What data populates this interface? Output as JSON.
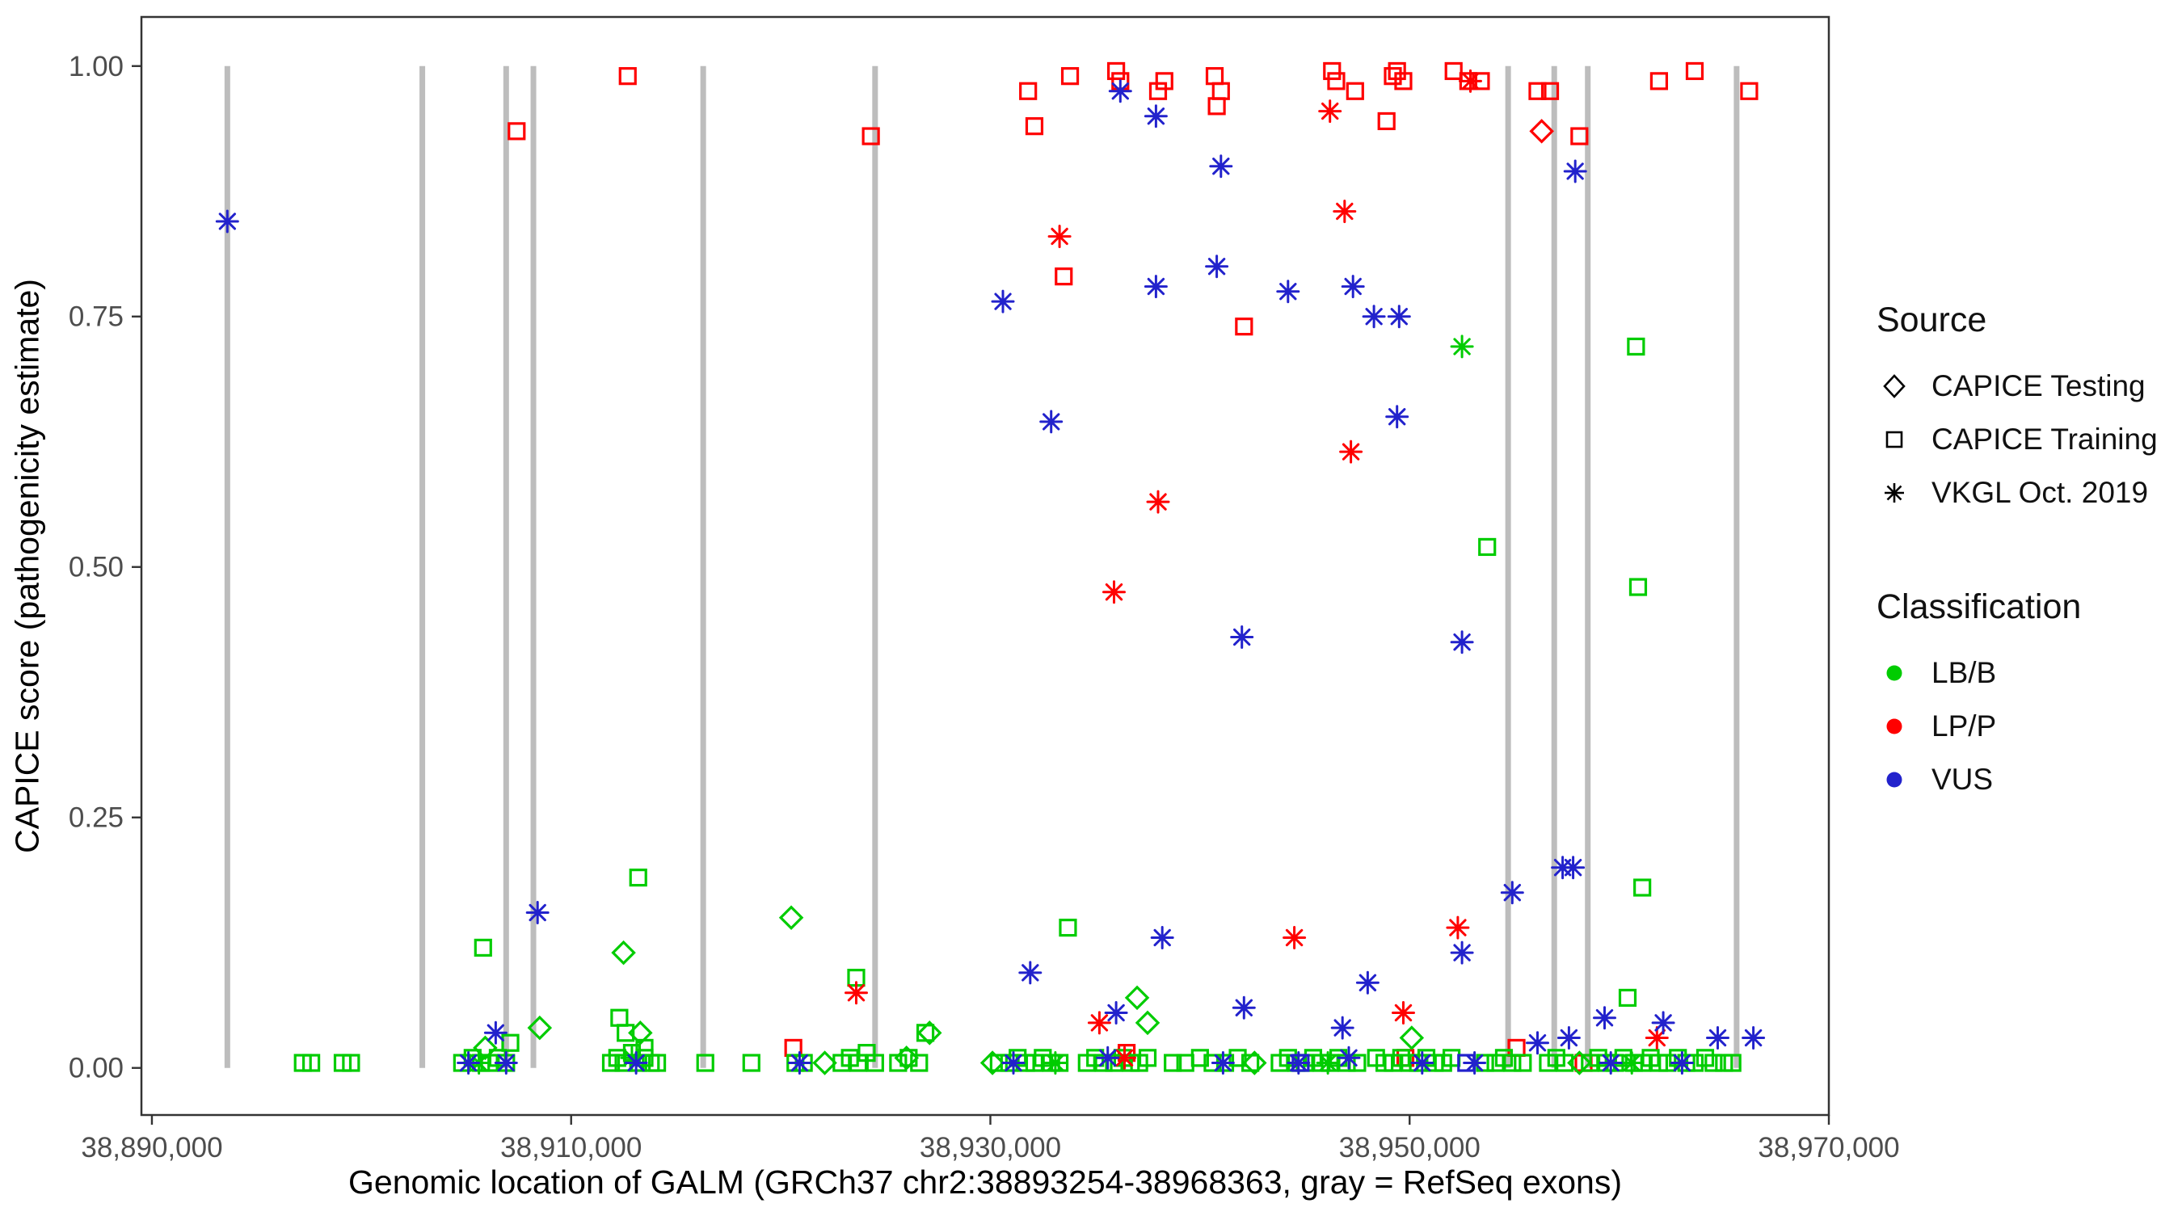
{
  "figure": {
    "y_axis_title": "CAPICE score (pathogenicity estimate)",
    "x_axis_title": "Genomic location of GALM (GRCh37 chr2:38893254-38968363, gray = RefSeq exons)"
  },
  "legend": {
    "source": {
      "title": "Source",
      "items": [
        {
          "label": "CAPICE Testing",
          "shape": "diamond"
        },
        {
          "label": "CAPICE Training",
          "shape": "square"
        },
        {
          "label": "VKGL Oct. 2019",
          "shape": "asterisk"
        }
      ]
    },
    "classification": {
      "title": "Classification",
      "items": [
        {
          "label": "LB/B",
          "color": "#00CC00"
        },
        {
          "label": "LP/P",
          "color": "#FF0000"
        },
        {
          "label": "VUS",
          "color": "#2222CC"
        }
      ]
    }
  },
  "chart_data": {
    "type": "scatter",
    "title": "",
    "xlabel": "Genomic location of GALM (GRCh37 chr2:38893254-38968363, gray = RefSeq exons)",
    "ylabel": "CAPICE score (pathogenicity estimate)",
    "xlim": [
      38889500,
      38970000
    ],
    "ylim": [
      -0.047,
      1.049
    ],
    "grid": false,
    "legend_position": "right",
    "x_ticks": [
      {
        "value": 38890000,
        "label": "38,890,000"
      },
      {
        "value": 38910000,
        "label": "38,910,000"
      },
      {
        "value": 38930000,
        "label": "38,930,000"
      },
      {
        "value": 38950000,
        "label": "38,950,000"
      },
      {
        "value": 38970000,
        "label": "38,970,000"
      }
    ],
    "y_ticks": [
      {
        "value": 0.0,
        "label": "0.00"
      },
      {
        "value": 0.25,
        "label": "0.25"
      },
      {
        "value": 0.5,
        "label": "0.50"
      },
      {
        "value": 0.75,
        "label": "0.75"
      },
      {
        "value": 1.0,
        "label": "1.00"
      }
    ],
    "colors": {
      "LB/B": "#00CC00",
      "LP/P": "#FF0000",
      "VUS": "#2222CC"
    },
    "shapes": {
      "CAPICE Testing": "diamond",
      "CAPICE Training": "square",
      "VKGL Oct. 2019": "asterisk"
    },
    "exons": {
      "note": "gray vertical lines = RefSeq exons",
      "color": "#BDBDBD",
      "width": 7,
      "y_span": [
        0.0,
        1.0
      ],
      "positions": [
        38893600,
        38902900,
        38906900,
        38908200,
        38916300,
        38924500,
        38954700,
        38956900,
        38958500,
        38965600
      ]
    },
    "series": [
      {
        "name": "CAPICE Training / LP/P",
        "source": "CAPICE Training",
        "classification": "LP/P",
        "shape": "square",
        "points": [
          [
            38907400,
            0.935
          ],
          [
            38912700,
            0.99
          ],
          [
            38924300,
            0.93
          ],
          [
            38931800,
            0.975
          ],
          [
            38932100,
            0.94
          ],
          [
            38933500,
            0.79
          ],
          [
            38933800,
            0.99
          ],
          [
            38936000,
            0.995
          ],
          [
            38936200,
            0.985
          ],
          [
            38938000,
            0.975
          ],
          [
            38938300,
            0.985
          ],
          [
            38940700,
            0.99
          ],
          [
            38940800,
            0.96
          ],
          [
            38941000,
            0.975
          ],
          [
            38942100,
            0.74
          ],
          [
            38946300,
            0.995
          ],
          [
            38946500,
            0.985
          ],
          [
            38947400,
            0.975
          ],
          [
            38948900,
            0.945
          ],
          [
            38949200,
            0.99
          ],
          [
            38949400,
            0.995
          ],
          [
            38949700,
            0.985
          ],
          [
            38952100,
            0.995
          ],
          [
            38952800,
            0.985
          ],
          [
            38953400,
            0.985
          ],
          [
            38956100,
            0.975
          ],
          [
            38956700,
            0.975
          ],
          [
            38958100,
            0.93
          ],
          [
            38961900,
            0.985
          ],
          [
            38963600,
            0.995
          ],
          [
            38966200,
            0.975
          ],
          [
            38920600,
            0.02
          ],
          [
            38936500,
            0.015
          ],
          [
            38949800,
            0.01
          ],
          [
            38955100,
            0.02
          ],
          [
            38958300,
            0.005
          ]
        ]
      },
      {
        "name": "CAPICE Training / LB/B",
        "source": "CAPICE Training",
        "classification": "LB/B",
        "shape": "square",
        "points": [
          [
            38913200,
            0.19
          ],
          [
            38905800,
            0.12
          ],
          [
            38907100,
            0.025
          ],
          [
            38912300,
            0.05
          ],
          [
            38912600,
            0.035
          ],
          [
            38913500,
            0.02
          ],
          [
            38923600,
            0.09
          ],
          [
            38926900,
            0.035
          ],
          [
            38933700,
            0.14
          ],
          [
            38953700,
            0.52
          ],
          [
            38960800,
            0.72
          ],
          [
            38960900,
            0.48
          ],
          [
            38961100,
            0.18
          ],
          [
            38960400,
            0.07
          ],
          [
            38897200,
            0.005
          ],
          [
            38897600,
            0.005
          ],
          [
            38899100,
            0.005
          ],
          [
            38899500,
            0.005
          ],
          [
            38904800,
            0.005
          ],
          [
            38905300,
            0.01
          ],
          [
            38905700,
            0.005
          ],
          [
            38906100,
            0.005
          ],
          [
            38906500,
            0.01
          ],
          [
            38906900,
            0.005
          ],
          [
            38911900,
            0.005
          ],
          [
            38912200,
            0.01
          ],
          [
            38912500,
            0.005
          ],
          [
            38912900,
            0.015
          ],
          [
            38913200,
            0.005
          ],
          [
            38913500,
            0.01
          ],
          [
            38913800,
            0.005
          ],
          [
            38914100,
            0.005
          ],
          [
            38916400,
            0.005
          ],
          [
            38918600,
            0.005
          ],
          [
            38920700,
            0.005
          ],
          [
            38921100,
            0.005
          ],
          [
            38922900,
            0.005
          ],
          [
            38923300,
            0.01
          ],
          [
            38923700,
            0.005
          ],
          [
            38924100,
            0.015
          ],
          [
            38924500,
            0.005
          ],
          [
            38925600,
            0.005
          ],
          [
            38926100,
            0.01
          ],
          [
            38926600,
            0.005
          ],
          [
            38930400,
            0.005
          ],
          [
            38930900,
            0.005
          ],
          [
            38931300,
            0.01
          ],
          [
            38931700,
            0.005
          ],
          [
            38932100,
            0.005
          ],
          [
            38932500,
            0.01
          ],
          [
            38932900,
            0.005
          ],
          [
            38933300,
            0.005
          ],
          [
            38934600,
            0.005
          ],
          [
            38935000,
            0.01
          ],
          [
            38935400,
            0.005
          ],
          [
            38935900,
            0.005
          ],
          [
            38936300,
            0.01
          ],
          [
            38936700,
            0.005
          ],
          [
            38937100,
            0.005
          ],
          [
            38937500,
            0.01
          ],
          [
            38938700,
            0.005
          ],
          [
            38939300,
            0.005
          ],
          [
            38940000,
            0.01
          ],
          [
            38940600,
            0.005
          ],
          [
            38941200,
            0.005
          ],
          [
            38941800,
            0.01
          ],
          [
            38942400,
            0.005
          ],
          [
            38943800,
            0.005
          ],
          [
            38944200,
            0.01
          ],
          [
            38944600,
            0.005
          ],
          [
            38945000,
            0.005
          ],
          [
            38945400,
            0.01
          ],
          [
            38945800,
            0.005
          ],
          [
            38946200,
            0.005
          ],
          [
            38946600,
            0.01
          ],
          [
            38947000,
            0.005
          ],
          [
            38947500,
            0.005
          ],
          [
            38948400,
            0.01
          ],
          [
            38948800,
            0.005
          ],
          [
            38949200,
            0.005
          ],
          [
            38949600,
            0.01
          ],
          [
            38950000,
            0.005
          ],
          [
            38950400,
            0.005
          ],
          [
            38950800,
            0.01
          ],
          [
            38951200,
            0.005
          ],
          [
            38951600,
            0.005
          ],
          [
            38952000,
            0.01
          ],
          [
            38953600,
            0.005
          ],
          [
            38954100,
            0.005
          ],
          [
            38954500,
            0.01
          ],
          [
            38954900,
            0.005
          ],
          [
            38955400,
            0.005
          ],
          [
            38956600,
            0.005
          ],
          [
            38957000,
            0.01
          ],
          [
            38957400,
            0.005
          ],
          [
            38958600,
            0.005
          ],
          [
            38959000,
            0.01
          ],
          [
            38959400,
            0.005
          ],
          [
            38959800,
            0.005
          ],
          [
            38960200,
            0.01
          ],
          [
            38960700,
            0.005
          ],
          [
            38961100,
            0.005
          ],
          [
            38961500,
            0.01
          ],
          [
            38961900,
            0.005
          ],
          [
            38962300,
            0.005
          ],
          [
            38962800,
            0.01
          ],
          [
            38963200,
            0.005
          ],
          [
            38963600,
            0.005
          ],
          [
            38964100,
            0.01
          ],
          [
            38964500,
            0.005
          ],
          [
            38965000,
            0.005
          ],
          [
            38965400,
            0.005
          ]
        ]
      },
      {
        "name": "CAPICE Training / VUS",
        "source": "CAPICE Training",
        "classification": "VUS",
        "shape": "square",
        "points": [
          [
            38944800,
            0.005
          ],
          [
            38952700,
            0.005
          ]
        ]
      },
      {
        "name": "CAPICE Testing / LP/P",
        "source": "CAPICE Testing",
        "classification": "LP/P",
        "shape": "diamond",
        "points": [
          [
            38956300,
            0.935
          ]
        ]
      },
      {
        "name": "CAPICE Testing / LB/B",
        "source": "CAPICE Testing",
        "classification": "LB/B",
        "shape": "diamond",
        "points": [
          [
            38912500,
            0.115
          ],
          [
            38920500,
            0.15
          ],
          [
            38937000,
            0.07
          ],
          [
            38937500,
            0.045
          ],
          [
            38908500,
            0.04
          ],
          [
            38913300,
            0.035
          ],
          [
            38927100,
            0.035
          ],
          [
            38905900,
            0.02
          ],
          [
            38926000,
            0.01
          ],
          [
            38942600,
            0.005
          ],
          [
            38950100,
            0.03
          ],
          [
            38958100,
            0.005
          ],
          [
            38922100,
            0.005
          ],
          [
            38930100,
            0.005
          ]
        ]
      },
      {
        "name": "VKGL Oct. 2019 / LP/P",
        "source": "VKGL Oct. 2019",
        "classification": "LP/P",
        "shape": "asterisk",
        "points": [
          [
            38933300,
            0.83
          ],
          [
            38935900,
            0.475
          ],
          [
            38938000,
            0.565
          ],
          [
            38946200,
            0.955
          ],
          [
            38946900,
            0.855
          ],
          [
            38947200,
            0.615
          ],
          [
            38944500,
            0.13
          ],
          [
            38952300,
            0.14
          ],
          [
            38952900,
            0.985
          ],
          [
            38949700,
            0.055
          ],
          [
            38935200,
            0.045
          ],
          [
            38936400,
            0.01
          ],
          [
            38961800,
            0.03
          ],
          [
            38923600,
            0.075
          ]
        ]
      },
      {
        "name": "VKGL Oct. 2019 / LB/B",
        "source": "VKGL Oct. 2019",
        "classification": "LB/B",
        "shape": "asterisk",
        "points": [
          [
            38952500,
            0.72
          ],
          [
            38905600,
            0.005
          ],
          [
            38912900,
            0.01
          ],
          [
            38933100,
            0.005
          ],
          [
            38946100,
            0.005
          ],
          [
            38960600,
            0.005
          ]
        ]
      },
      {
        "name": "VKGL Oct. 2019 / VUS",
        "source": "VKGL Oct. 2019",
        "classification": "VUS",
        "shape": "asterisk",
        "points": [
          [
            38893600,
            0.845
          ],
          [
            38906400,
            0.035
          ],
          [
            38908400,
            0.155
          ],
          [
            38930600,
            0.765
          ],
          [
            38931900,
            0.095
          ],
          [
            38932900,
            0.645
          ],
          [
            38936000,
            0.055
          ],
          [
            38936200,
            0.975
          ],
          [
            38937900,
            0.95
          ],
          [
            38937900,
            0.78
          ],
          [
            38938200,
            0.13
          ],
          [
            38940800,
            0.8
          ],
          [
            38941000,
            0.9
          ],
          [
            38942000,
            0.43
          ],
          [
            38942100,
            0.06
          ],
          [
            38944200,
            0.775
          ],
          [
            38946800,
            0.04
          ],
          [
            38947300,
            0.78
          ],
          [
            38948000,
            0.085
          ],
          [
            38948300,
            0.75
          ],
          [
            38949400,
            0.65
          ],
          [
            38949500,
            0.75
          ],
          [
            38952500,
            0.425
          ],
          [
            38952500,
            0.115
          ],
          [
            38954900,
            0.175
          ],
          [
            38956100,
            0.025
          ],
          [
            38957300,
            0.2
          ],
          [
            38957800,
            0.2
          ],
          [
            38957900,
            0.895
          ],
          [
            38957600,
            0.03
          ],
          [
            38959300,
            0.05
          ],
          [
            38962100,
            0.045
          ],
          [
            38964700,
            0.03
          ],
          [
            38966400,
            0.03
          ],
          [
            38905100,
            0.005
          ],
          [
            38906900,
            0.005
          ],
          [
            38913100,
            0.005
          ],
          [
            38920900,
            0.005
          ],
          [
            38931100,
            0.005
          ],
          [
            38935600,
            0.01
          ],
          [
            38941100,
            0.005
          ],
          [
            38944700,
            0.005
          ],
          [
            38947100,
            0.01
          ],
          [
            38950600,
            0.005
          ],
          [
            38953100,
            0.005
          ],
          [
            38959600,
            0.005
          ],
          [
            38963000,
            0.005
          ]
        ]
      }
    ]
  }
}
